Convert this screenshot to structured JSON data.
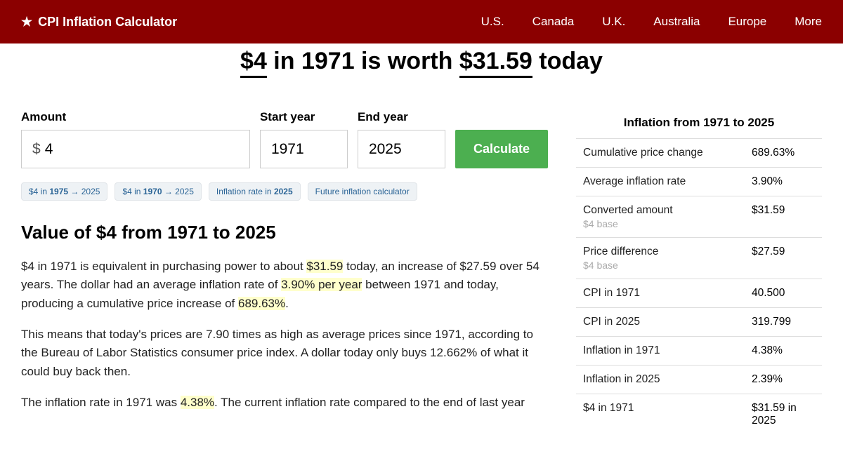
{
  "header": {
    "logo_text": "CPI Inflation Calculator",
    "nav": [
      "U.S.",
      "Canada",
      "U.K.",
      "Australia",
      "Europe",
      "More"
    ]
  },
  "title": {
    "amount_from": "$4",
    "mid": " in 1971 is worth ",
    "amount_to": "$31.59",
    "suffix": " today"
  },
  "form": {
    "amount_label": "Amount",
    "amount_prefix": "$",
    "amount_value": "4",
    "start_label": "Start year",
    "start_value": "1971",
    "end_label": "End year",
    "end_value": "2025",
    "calc_label": "Calculate"
  },
  "chips": {
    "c1_a": "$4 in ",
    "c1_b": "1975",
    "c1_c": " → 2025",
    "c2_a": "$4 in ",
    "c2_b": "1970",
    "c2_c": " → 2025",
    "c3_a": "Inflation rate in ",
    "c3_b": "2025",
    "c3_c": "",
    "c4_a": "Future inflation calculator",
    "c4_b": "",
    "c4_c": ""
  },
  "section_title": "Value of $4 from 1971 to 2025",
  "p1": {
    "a": "$4 in 1971 is equivalent in purchasing power to about ",
    "h1": "$31.59",
    "b": " today, an increase of $27.59 over 54 years. The dollar had an average inflation rate of ",
    "h2": "3.90% per year",
    "c": " between 1971 and today, producing a cumulative price increase of ",
    "h3": "689.63%",
    "d": "."
  },
  "p2": "This means that today's prices are 7.90 times as high as average prices since 1971, according to the Bureau of Labor Statistics consumer price index. A dollar today only buys 12.662% of what it could buy back then.",
  "p3": {
    "a": "The inflation rate in 1971 was ",
    "h1": "4.38%",
    "b": ". The current inflation rate compared to the end of last year"
  },
  "stats": {
    "title": "Inflation from 1971 to 2025",
    "base_sub": "$4 base",
    "rows": [
      {
        "label": "Cumulative price change",
        "value": "689.63%"
      },
      {
        "label": "Average inflation rate",
        "value": "3.90%"
      },
      {
        "label": "Converted amount",
        "value": "$31.59",
        "sub": true
      },
      {
        "label": "Price difference",
        "value": "$27.59",
        "sub": true
      },
      {
        "label": "CPI in 1971",
        "value": "40.500"
      },
      {
        "label": "CPI in 2025",
        "value": "319.799"
      },
      {
        "label": "Inflation in 1971",
        "value": "4.38%"
      },
      {
        "label": "Inflation in 2025",
        "value": "2.39%"
      },
      {
        "label": "$4 in 1971",
        "value": "$31.59 in 2025"
      }
    ]
  },
  "colors": {
    "header_bg": "#8b0000",
    "calc_bg": "#4caf50",
    "chip_bg": "#eef2f5",
    "chip_text": "#2a6496",
    "highlight_bg": "#ffffcc"
  }
}
